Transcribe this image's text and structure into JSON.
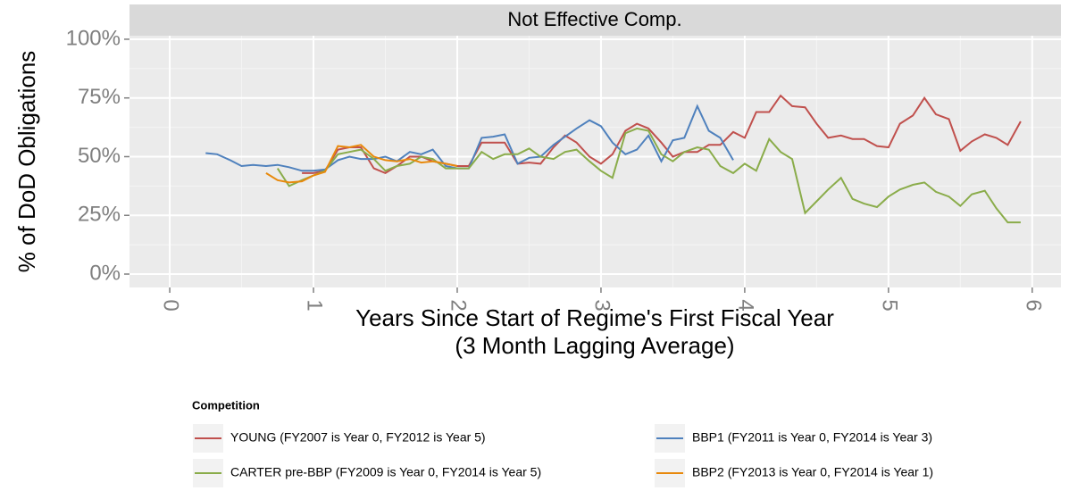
{
  "chart_data": {
    "type": "line",
    "facet_label": "Not Effective Comp.",
    "y_label": "% of DoD Obligations",
    "x_label": [
      "Years Since Start of Regime's First Fiscal Year",
      "(3 Month Lagging Average)"
    ],
    "legend_title": "Competition",
    "xlim": [
      -0.28,
      6.2
    ],
    "xticks": [
      0,
      1,
      2,
      3,
      4,
      5,
      6
    ],
    "ylim": [
      -5.7,
      101.5
    ],
    "yticks": [
      {
        "value": 0,
        "label": "0%"
      },
      {
        "value": 25,
        "label": "25%"
      },
      {
        "value": 50,
        "label": "50%"
      },
      {
        "value": 75,
        "label": "75%"
      },
      {
        "value": 100,
        "label": "100%"
      }
    ],
    "grid": true,
    "series": [
      {
        "name": "YOUNG (FY2007 is Year 0, FY2012 is Year 5)",
        "color": "#c0504d",
        "x": [
          0.92,
          1.0,
          1.08,
          1.17,
          1.25,
          1.33,
          1.42,
          1.5,
          1.58,
          1.67,
          1.75,
          1.83,
          1.92,
          2.0,
          2.08,
          2.17,
          2.25,
          2.33,
          2.42,
          2.5,
          2.58,
          2.67,
          2.75,
          2.83,
          2.92,
          3.0,
          3.08,
          3.17,
          3.25,
          3.33,
          3.42,
          3.5,
          3.58,
          3.67,
          3.75,
          3.83,
          3.92,
          4.0,
          4.08,
          4.17,
          4.25,
          4.33,
          4.42,
          4.5,
          4.58,
          4.67,
          4.75,
          4.83,
          4.92,
          5.0,
          5.08,
          5.17,
          5.25,
          5.33,
          5.42,
          5.5,
          5.58,
          5.67,
          5.75,
          5.83,
          5.92
        ],
        "values": [
          43,
          43,
          44,
          53,
          54,
          54,
          45,
          43,
          46,
          50,
          50,
          48,
          47,
          46,
          46,
          56,
          56,
          56,
          47,
          47.5,
          47,
          54,
          59,
          56,
          50,
          47,
          51,
          61,
          64,
          62,
          56,
          50,
          52,
          52,
          55,
          55,
          60.5,
          58,
          69,
          69,
          76,
          71.5,
          71,
          64,
          58,
          59,
          57.5,
          57.5,
          54.5,
          54,
          64,
          67.5,
          75,
          68,
          66,
          52.5,
          56.5,
          59.5,
          58,
          55,
          65
        ]
      },
      {
        "name": "BBP1 (FY2011 is Year 0, FY2014 is Year 3)",
        "color": "#4f81bd",
        "x": [
          0.25,
          0.33,
          0.42,
          0.5,
          0.58,
          0.67,
          0.75,
          0.83,
          0.92,
          1.0,
          1.08,
          1.17,
          1.25,
          1.33,
          1.42,
          1.5,
          1.58,
          1.67,
          1.75,
          1.83,
          1.92,
          2.0,
          2.08,
          2.17,
          2.25,
          2.33,
          2.42,
          2.5,
          2.58,
          2.67,
          2.75,
          2.83,
          2.92,
          3.0,
          3.08,
          3.17,
          3.25,
          3.33,
          3.42,
          3.5,
          3.58,
          3.67,
          3.75,
          3.83,
          3.92
        ],
        "values": [
          51.5,
          51,
          48.5,
          46,
          46.5,
          46,
          46.5,
          45.5,
          44,
          44,
          44.5,
          48.5,
          50,
          49,
          49,
          50,
          48,
          52,
          51,
          53,
          46,
          45,
          45,
          58,
          58.5,
          59.5,
          47,
          49.5,
          50,
          55,
          58.5,
          62,
          65.5,
          63,
          56,
          51,
          53,
          59,
          48,
          57,
          58,
          71.5,
          61,
          58,
          48.5
        ]
      },
      {
        "name": "CARTER pre-BBP (FY2009 is Year 0, FY2014 is Year 5)",
        "color": "#8aac4a",
        "x": [
          0.75,
          0.83,
          0.92,
          1.0,
          1.08,
          1.17,
          1.25,
          1.33,
          1.42,
          1.5,
          1.58,
          1.67,
          1.75,
          1.83,
          1.92,
          2.0,
          2.08,
          2.17,
          2.25,
          2.33,
          2.42,
          2.5,
          2.58,
          2.67,
          2.75,
          2.83,
          2.92,
          3.0,
          3.08,
          3.17,
          3.25,
          3.33,
          3.42,
          3.5,
          3.58,
          3.67,
          3.75,
          3.83,
          3.92,
          4.0,
          4.08,
          4.17,
          4.25,
          4.33,
          4.42,
          4.5,
          4.58,
          4.67,
          4.75,
          4.83,
          4.92,
          5.0,
          5.08,
          5.17,
          5.25,
          5.33,
          5.42,
          5.5,
          5.58,
          5.67,
          5.75,
          5.83,
          5.92
        ],
        "values": [
          45,
          37.5,
          40,
          42,
          44,
          51,
          52,
          53,
          49,
          44,
          46,
          47,
          50,
          49,
          45,
          45,
          45,
          52,
          49,
          51,
          51,
          53.5,
          50,
          49,
          52,
          53,
          48,
          44,
          41,
          60,
          62,
          61,
          51,
          48,
          52,
          54,
          53,
          46,
          43,
          47,
          44,
          57.5,
          52,
          49,
          26,
          31,
          36,
          41,
          32,
          30,
          28.5,
          33,
          36,
          38,
          39,
          35,
          33,
          29,
          34,
          35.5,
          28,
          22,
          22
        ]
      },
      {
        "name": "BBP2 (FY2013 is Year 0, FY2014 is Year 1)",
        "color": "#e8890c",
        "x": [
          0.67,
          0.75,
          0.83,
          0.92,
          1.0,
          1.08,
          1.17,
          1.25,
          1.33,
          1.42,
          1.5,
          1.58,
          1.67,
          1.75,
          1.83,
          1.92,
          2.0
        ],
        "values": [
          43,
          40,
          39,
          39.5,
          42,
          43.5,
          54.5,
          54,
          55,
          50,
          48.5,
          48,
          49,
          47.5,
          48,
          47,
          46
        ]
      }
    ]
  }
}
